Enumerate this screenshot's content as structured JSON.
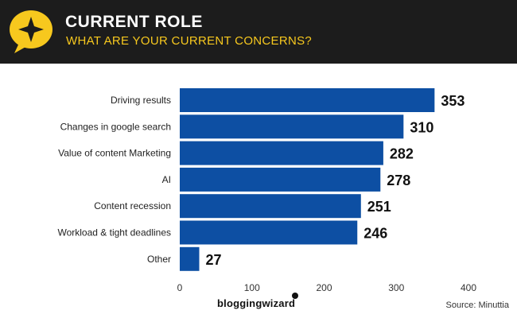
{
  "header": {
    "title": "CURRENT ROLE",
    "subtitle": "WHAT ARE YOUR CURRENT CONCERNS?",
    "badge_icon": "star-speech-bubble-icon",
    "accent_color": "#f7c81e",
    "background_color": "#1c1c1c"
  },
  "chart_data": {
    "type": "bar",
    "orientation": "horizontal",
    "title": "What are your current concerns?",
    "categories": [
      "Driving results",
      "Changes in google search",
      "Value of content Marketing",
      "AI",
      "Content recession",
      "Workload & tight deadlines",
      "Other"
    ],
    "values": [
      353,
      310,
      282,
      278,
      251,
      246,
      27
    ],
    "xlim": [
      0,
      400
    ],
    "xticks": [
      0,
      100,
      200,
      300,
      400
    ],
    "grid": false,
    "bar_color": "#0d4fa3"
  },
  "footer": {
    "brand": "bloggingwizard",
    "source": "Source:  Minuttia"
  }
}
